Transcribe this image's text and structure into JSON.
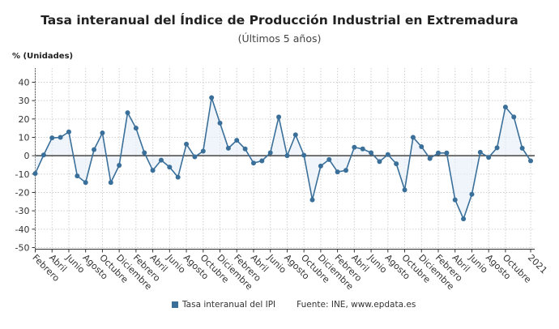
{
  "chart_data": {
    "type": "line",
    "title": "Tasa interanual del Índice de Producción Industrial en Extremadura",
    "subtitle": "(Últimos 5 años)",
    "ylabel": "% (Unidades)",
    "xlabel": "",
    "ylim": [
      -50,
      40
    ],
    "yticks": [
      40,
      30,
      20,
      10,
      0,
      -10,
      -20,
      -30,
      -40,
      -50
    ],
    "grid": true,
    "legend_position": "bottom",
    "categories": [
      "Febrero",
      "",
      "Abril",
      "",
      "Junio",
      "",
      "Agosto",
      "",
      "Octubre",
      "",
      "Diciembre",
      "",
      "Febrero",
      "",
      "Abril",
      "",
      "Junio",
      "",
      "Agosto",
      "",
      "Octubre",
      "",
      "Diciembre",
      "",
      "Febrero",
      "",
      "Abril",
      "",
      "Junio",
      "",
      "Agosto",
      "",
      "Octubre",
      "",
      "Diciembre",
      "",
      "Febrero",
      "",
      "Abril",
      "",
      "Junio",
      "",
      "Agosto",
      "",
      "Octubre",
      "",
      "Diciembre",
      "",
      "Febrero",
      "",
      "Abril",
      "",
      "Junio",
      "",
      "Agosto",
      "",
      "Octubre",
      "",
      "",
      "2021"
    ],
    "series": [
      {
        "name": "Tasa interanual del IPI",
        "color": "#3a6f9a",
        "values": [
          -9.7,
          0.4,
          9.7,
          10,
          13,
          -11,
          -14.6,
          3.3,
          12.4,
          -14.6,
          -5.2,
          23.4,
          15,
          1.6,
          -8,
          -2.4,
          -6.2,
          -11.7,
          6.3,
          -0.6,
          2.5,
          31.6,
          17.8,
          4.1,
          8.4,
          3.7,
          -4,
          -2.8,
          1.6,
          21.1,
          0,
          11.4,
          0.3,
          -24,
          -5.6,
          -2.1,
          -8.8,
          -8,
          4.6,
          3.7,
          1.6,
          -3.2,
          0.6,
          -4.4,
          -18.6,
          10,
          4.9,
          -1.5,
          1.5,
          1.5,
          -24,
          -34.4,
          -21,
          1.9,
          -0.9,
          4.3,
          26.5,
          21.1,
          4.1,
          -2.8
        ]
      }
    ],
    "source": "Fuente: INE, www.epdata.es"
  }
}
